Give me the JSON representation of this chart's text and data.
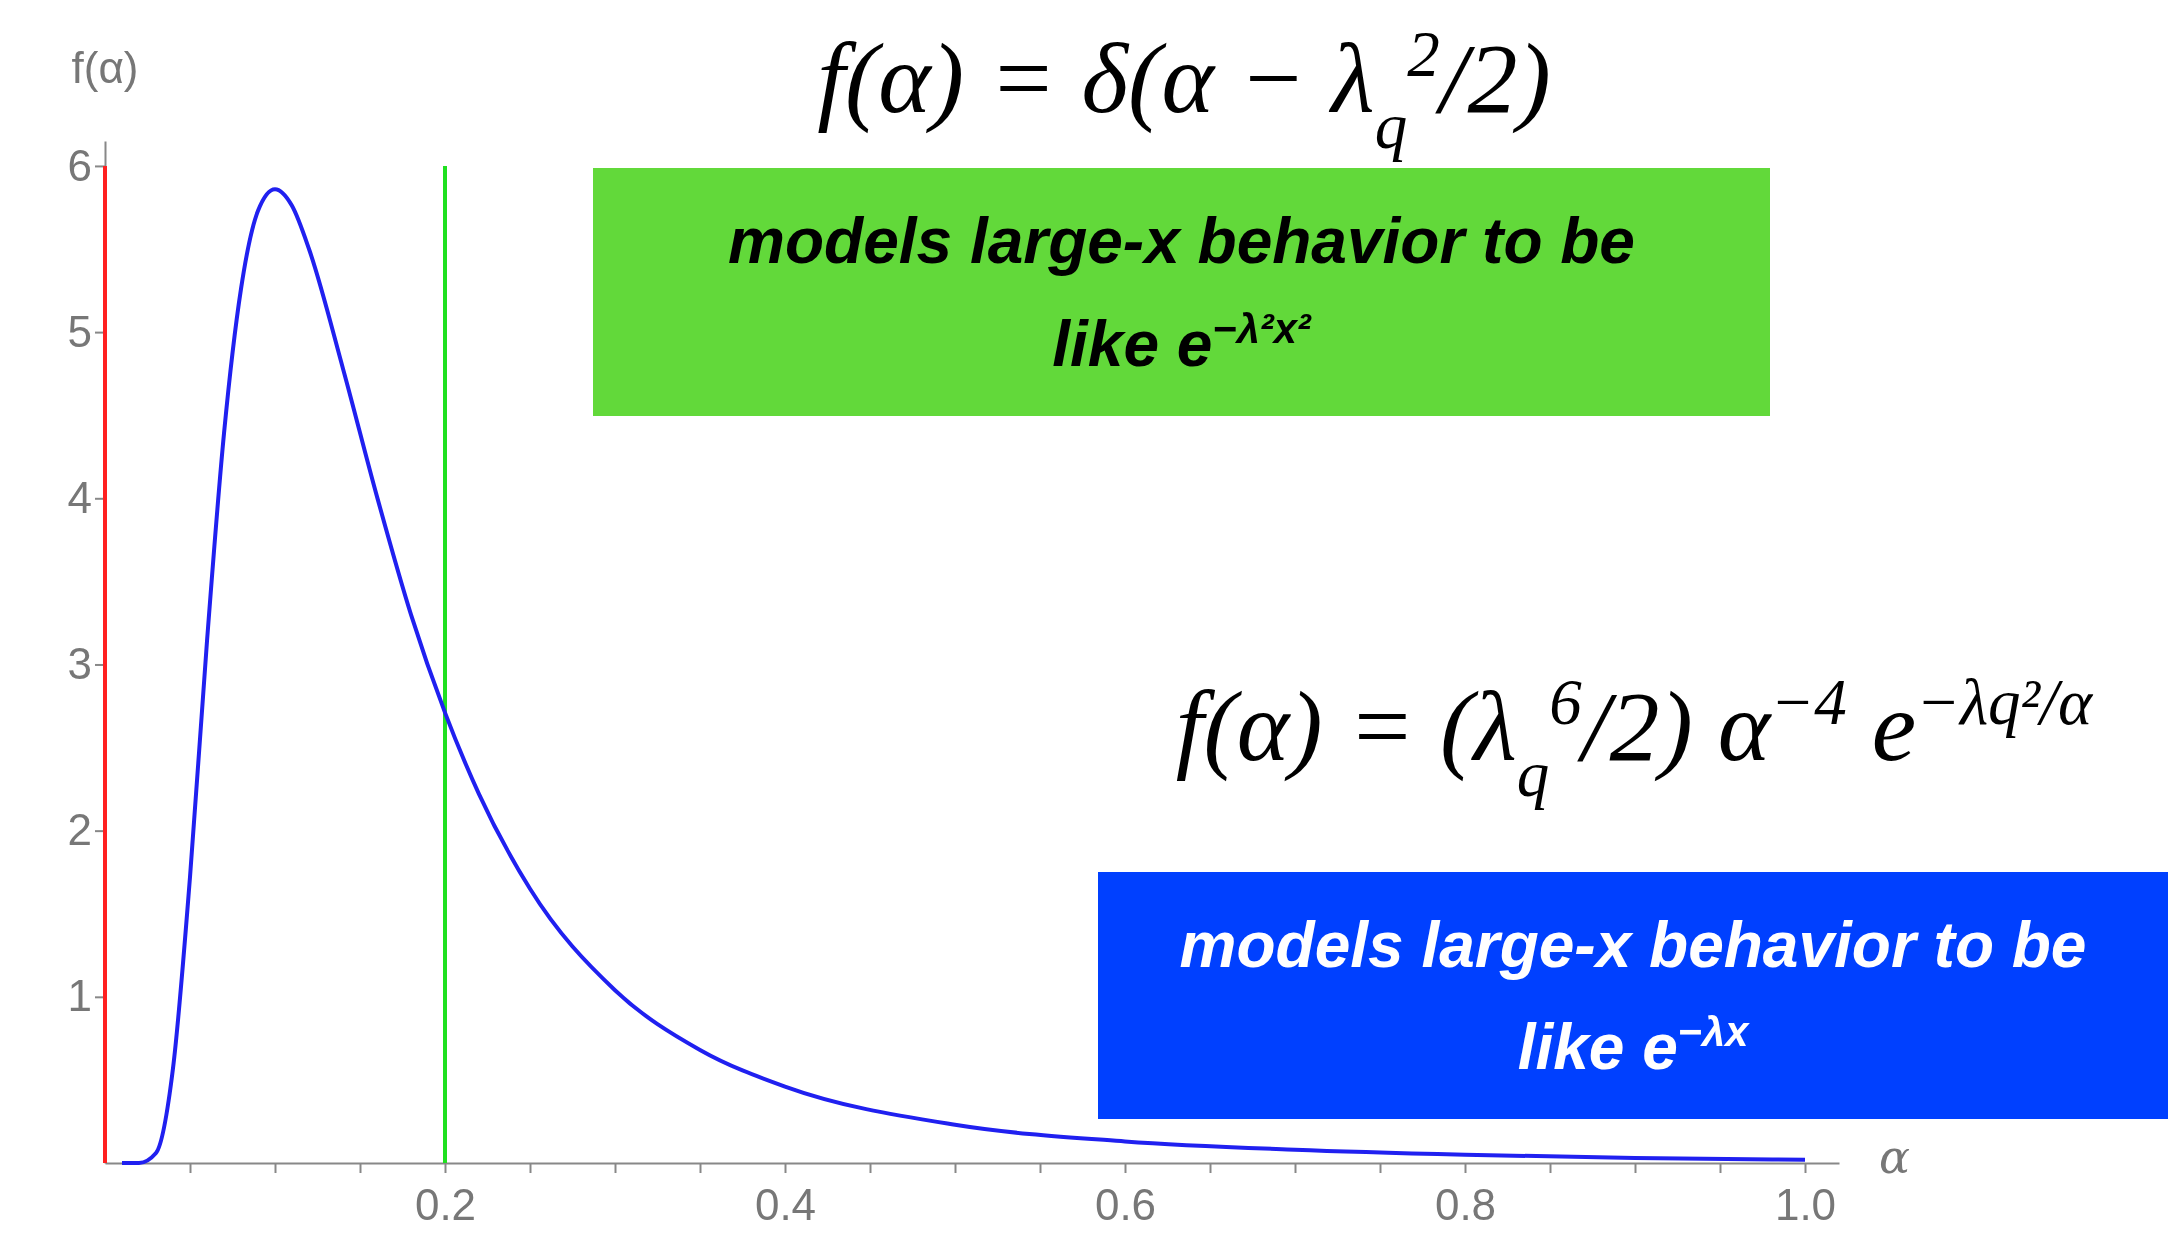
{
  "chart_data": {
    "type": "line",
    "xlabel": "α",
    "ylabel": "f(α)",
    "x": [
      0.01,
      0.02,
      0.03,
      0.04,
      0.05,
      0.06,
      0.07,
      0.08,
      0.09,
      0.1,
      0.11,
      0.12,
      0.14,
      0.16,
      0.18,
      0.2,
      0.22,
      0.25,
      0.3,
      0.35,
      0.4,
      0.5,
      0.6,
      0.7,
      0.8,
      0.9,
      1.0
    ],
    "series": [
      {
        "color": "#2020f0",
        "values": [
          0,
          0,
          0.06,
          0.57,
          1.72,
          3.14,
          4.39,
          5.26,
          5.73,
          5.86,
          5.76,
          5.5,
          4.78,
          4.01,
          3.3,
          2.71,
          2.22,
          1.65,
          1.04,
          0.68,
          0.46,
          0.23,
          0.13,
          0.08,
          0.05,
          0.03,
          0.02
        ]
      }
    ],
    "xlim": [
      0,
      1.02
    ],
    "ylim": [
      0,
      6.15
    ],
    "xticks": [
      {
        "value": 0.05,
        "label": null
      },
      {
        "value": 0.1,
        "label": null
      },
      {
        "value": 0.15,
        "label": null
      },
      0.2,
      {
        "value": 0.25,
        "label": null
      },
      {
        "value": 0.3,
        "label": null
      },
      {
        "value": 0.35,
        "label": null
      },
      0.4,
      {
        "value": 0.45,
        "label": null
      },
      {
        "value": 0.5,
        "label": null
      },
      {
        "value": 0.55,
        "label": null
      },
      0.6,
      {
        "value": 0.65,
        "label": null
      },
      {
        "value": 0.7,
        "label": null
      },
      {
        "value": 0.75,
        "label": null
      },
      0.8,
      {
        "value": 0.85,
        "label": null
      },
      {
        "value": 0.9,
        "label": null
      },
      {
        "value": 0.95,
        "label": null
      },
      {
        "value": 1.0,
        "label": "1.0"
      }
    ],
    "yticks": [
      1,
      2,
      3,
      4,
      5,
      6
    ],
    "grid": false,
    "marker": "none",
    "line_style": "solid",
    "legend": false,
    "ref_lines": [
      {
        "axis": "x",
        "value": 0,
        "color": "#ff2020"
      },
      {
        "axis": "x",
        "value": 0.2,
        "color": "#20e020"
      }
    ],
    "annotations": [
      "f(α) = δ(α − λ$_{q}$$^{2}$/2)",
      "models large-x behavior to be like e$^{−λ²x²}$",
      "f(α) = (λ$_{q}$$^{6}$/2) α$^{−4}$ e$^{−λq²/α}$",
      "models large-x behavior to be like e$^{−λx}$"
    ]
  }
}
